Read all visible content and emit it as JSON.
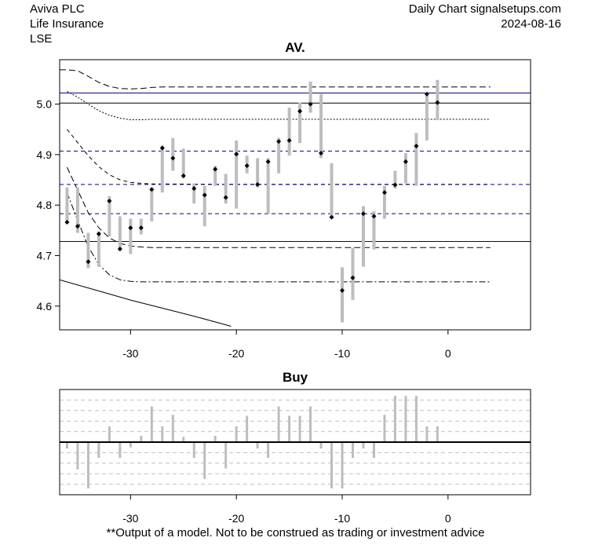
{
  "header": {
    "company": "Aviva PLC",
    "sector": "Life Insurance",
    "exchange": "LSE",
    "source": "Daily Chart signalsetups.com",
    "date": "2024-08-16"
  },
  "disclaimer": "**Output of a model. Not to be construed as trading or investment advice",
  "chart_data": [
    {
      "type": "candlestick-range",
      "title": "AV.",
      "xlim": [
        -36.7,
        7.8
      ],
      "ylim": [
        4.553,
        5.088
      ],
      "x_ticks": [
        -30,
        -20,
        -10,
        0
      ],
      "y_ticks": [
        4.6,
        4.7,
        4.8,
        4.9,
        5.0
      ],
      "y_tick_labels": [
        "4.6",
        "4.7",
        "4.8",
        "4.9",
        "5.0"
      ],
      "x_tick_labels": [
        "-30",
        "-20",
        "-10",
        "0"
      ],
      "bars": [
        {
          "x": -36,
          "low": 4.765,
          "high": 4.835,
          "close": 4.766
        },
        {
          "x": -35,
          "low": 4.745,
          "high": 4.835,
          "close": 4.758
        },
        {
          "x": -34,
          "low": 4.675,
          "high": 4.745,
          "close": 4.688
        },
        {
          "x": -33,
          "low": 4.678,
          "high": 4.748,
          "close": 4.743
        },
        {
          "x": -32,
          "low": 4.738,
          "high": 4.818,
          "close": 4.808
        },
        {
          "x": -31,
          "low": 4.712,
          "high": 4.778,
          "close": 4.713
        },
        {
          "x": -30,
          "low": 4.703,
          "high": 4.773,
          "close": 4.755
        },
        {
          "x": -29,
          "low": 4.742,
          "high": 4.773,
          "close": 4.755
        },
        {
          "x": -28,
          "low": 4.768,
          "high": 4.833,
          "close": 4.831
        },
        {
          "x": -27,
          "low": 4.825,
          "high": 4.918,
          "close": 4.913
        },
        {
          "x": -26,
          "low": 4.868,
          "high": 4.933,
          "close": 4.893
        },
        {
          "x": -25,
          "low": 4.853,
          "high": 4.912,
          "close": 4.858
        },
        {
          "x": -24,
          "low": 4.803,
          "high": 4.843,
          "close": 4.833
        },
        {
          "x": -23,
          "low": 4.758,
          "high": 4.838,
          "close": 4.82
        },
        {
          "x": -22,
          "low": 4.838,
          "high": 4.878,
          "close": 4.871
        },
        {
          "x": -21,
          "low": 4.803,
          "high": 4.862,
          "close": 4.815
        },
        {
          "x": -20,
          "low": 4.793,
          "high": 4.928,
          "close": 4.901
        },
        {
          "x": -19,
          "low": 4.863,
          "high": 4.898,
          "close": 4.878
        },
        {
          "x": -18,
          "low": 4.835,
          "high": 4.893,
          "close": 4.841
        },
        {
          "x": -17,
          "low": 4.783,
          "high": 4.893,
          "close": 4.886
        },
        {
          "x": -16,
          "low": 4.863,
          "high": 4.933,
          "close": 4.926
        },
        {
          "x": -15,
          "low": 4.898,
          "high": 4.993,
          "close": 4.928
        },
        {
          "x": -14,
          "low": 4.923,
          "high": 5.003,
          "close": 4.986
        },
        {
          "x": -13,
          "low": 4.983,
          "high": 5.045,
          "close": 5.0
        },
        {
          "x": -12,
          "low": 4.893,
          "high": 5.02,
          "close": 4.903
        },
        {
          "x": -11,
          "low": 4.778,
          "high": 4.883,
          "close": 4.776
        },
        {
          "x": -10,
          "low": 4.568,
          "high": 4.677,
          "close": 4.631
        },
        {
          "x": -9,
          "low": 4.612,
          "high": 4.715,
          "close": 4.656
        },
        {
          "x": -8,
          "low": 4.678,
          "high": 4.798,
          "close": 4.783
        },
        {
          "x": -7,
          "low": 4.712,
          "high": 4.788,
          "close": 4.778
        },
        {
          "x": -6,
          "low": 4.773,
          "high": 4.838,
          "close": 4.825
        },
        {
          "x": -5,
          "low": 4.833,
          "high": 4.868,
          "close": 4.84
        },
        {
          "x": -4,
          "low": 4.843,
          "high": 4.903,
          "close": 4.886
        },
        {
          "x": -3,
          "low": 4.838,
          "high": 4.943,
          "close": 4.917
        },
        {
          "x": -2,
          "low": 4.928,
          "high": 5.023,
          "close": 5.02
        },
        {
          "x": -1,
          "low": 4.968,
          "high": 5.048,
          "close": 5.003
        }
      ],
      "hlines": [
        {
          "y": 5.022,
          "style": "solid",
          "color": "#000080"
        },
        {
          "y": 5.002,
          "style": "solid",
          "color": "#000000"
        },
        {
          "y": 4.907,
          "style": "dashed",
          "color": "#000080"
        },
        {
          "y": 4.841,
          "style": "dashed",
          "color": "#000080"
        },
        {
          "y": 4.783,
          "style": "dashed",
          "color": "#000080"
        },
        {
          "y": 4.728,
          "style": "solid",
          "color": "#000080"
        }
      ],
      "bands": [
        {
          "style": "longdash",
          "points": [
            [
              -36.7,
              5.068
            ],
            [
              -36,
              5.068
            ],
            [
              -35,
              5.066
            ],
            [
              -34,
              5.055
            ],
            [
              -33,
              5.043
            ],
            [
              -32,
              5.035
            ],
            [
              -31,
              5.031
            ],
            [
              -30,
              5.03
            ],
            [
              -29,
              5.031
            ],
            [
              -28,
              5.033
            ],
            [
              -27,
              5.034
            ],
            [
              -26,
              5.034
            ],
            [
              -20,
              5.034
            ],
            [
              -10,
              5.034
            ],
            [
              -5,
              5.034
            ],
            [
              4,
              5.034
            ]
          ]
        },
        {
          "style": "dotted",
          "points": [
            [
              -36,
              5.025
            ],
            [
              -35,
              5.014
            ],
            [
              -34,
              5.0
            ],
            [
              -33,
              4.987
            ],
            [
              -32,
              4.978
            ],
            [
              -31,
              4.972
            ],
            [
              -30,
              4.969
            ],
            [
              -29,
              4.969
            ],
            [
              -28,
              4.97
            ],
            [
              -20,
              4.97
            ],
            [
              -10,
              4.97
            ],
            [
              4,
              4.97
            ]
          ]
        },
        {
          "style": "dashed",
          "points": [
            [
              -36,
              4.95
            ],
            [
              -35,
              4.924
            ],
            [
              -34,
              4.898
            ],
            [
              -33,
              4.876
            ],
            [
              -32,
              4.86
            ],
            [
              -31,
              4.85
            ],
            [
              -30,
              4.845
            ],
            [
              -29,
              4.843
            ],
            [
              -28,
              4.842
            ],
            [
              -20,
              4.841
            ],
            [
              -10,
              4.841
            ],
            [
              4,
              4.841
            ]
          ]
        },
        {
          "style": "longdash",
          "points": [
            [
              -36,
              4.875
            ],
            [
              -35,
              4.83
            ],
            [
              -34,
              4.785
            ],
            [
              -33,
              4.755
            ],
            [
              -32,
              4.735
            ],
            [
              -31,
              4.724
            ],
            [
              -30,
              4.719
            ],
            [
              -29,
              4.717
            ],
            [
              -28,
              4.716
            ],
            [
              -20,
              4.716
            ],
            [
              -10,
              4.716
            ],
            [
              4,
              4.716
            ]
          ]
        },
        {
          "style": "dashdot",
          "points": [
            [
              -36,
              4.825
            ],
            [
              -35,
              4.77
            ],
            [
              -34,
              4.718
            ],
            [
              -33,
              4.682
            ],
            [
              -32,
              4.662
            ],
            [
              -31,
              4.652
            ],
            [
              -30,
              4.649
            ],
            [
              -29,
              4.648
            ],
            [
              -28,
              4.648
            ],
            [
              -20,
              4.648
            ],
            [
              -10,
              4.648
            ],
            [
              4,
              4.648
            ]
          ]
        },
        {
          "style": "solid",
          "points": [
            [
              -36.7,
              4.652
            ],
            [
              -33,
              4.63
            ],
            [
              -30,
              4.612
            ],
            [
              -27,
              4.596
            ],
            [
              -24,
              4.58
            ],
            [
              -21,
              4.563
            ],
            [
              -20.5,
              4.56
            ]
          ]
        }
      ]
    },
    {
      "type": "bar",
      "title": "Buy",
      "xlim": [
        -36.7,
        7.8
      ],
      "ylim": [
        -5.0,
        5.0
      ],
      "x_ticks": [
        -30,
        -20,
        -10,
        0
      ],
      "x_tick_labels": [
        "-30",
        "-20",
        "-10",
        "0"
      ],
      "grid": true,
      "bars": [
        {
          "x": -36,
          "value": -0.6
        },
        {
          "x": -35,
          "value": -2.6
        },
        {
          "x": -34,
          "value": -4.4
        },
        {
          "x": -33,
          "value": -1.5
        },
        {
          "x": -32,
          "value": 1.5
        },
        {
          "x": -31,
          "value": -1.5
        },
        {
          "x": -30,
          "value": -0.5
        },
        {
          "x": -29,
          "value": 0.6
        },
        {
          "x": -28,
          "value": 3.4
        },
        {
          "x": -27,
          "value": 1.5
        },
        {
          "x": -26,
          "value": 2.6
        },
        {
          "x": -25,
          "value": 0.5
        },
        {
          "x": -24,
          "value": -1.5
        },
        {
          "x": -23,
          "value": -3.5
        },
        {
          "x": -22,
          "value": 0.6
        },
        {
          "x": -21,
          "value": -2.5
        },
        {
          "x": -20,
          "value": 1.5
        },
        {
          "x": -19,
          "value": 2.5
        },
        {
          "x": -18,
          "value": -0.6
        },
        {
          "x": -17,
          "value": -1.5
        },
        {
          "x": -16,
          "value": 3.4
        },
        {
          "x": -15,
          "value": 2.5
        },
        {
          "x": -14,
          "value": 2.5
        },
        {
          "x": -13,
          "value": 3.4
        },
        {
          "x": -12,
          "value": -0.6
        },
        {
          "x": -11,
          "value": -4.4
        },
        {
          "x": -10,
          "value": -4.4
        },
        {
          "x": -9,
          "value": -1.5
        },
        {
          "x": -8,
          "value": -0.6
        },
        {
          "x": -7,
          "value": -1.5
        },
        {
          "x": -6,
          "value": 2.6
        },
        {
          "x": -5,
          "value": 4.4
        },
        {
          "x": -4,
          "value": 4.4
        },
        {
          "x": -3,
          "value": 4.4
        },
        {
          "x": -2,
          "value": 1.5
        },
        {
          "x": -1,
          "value": 1.5
        }
      ]
    }
  ]
}
